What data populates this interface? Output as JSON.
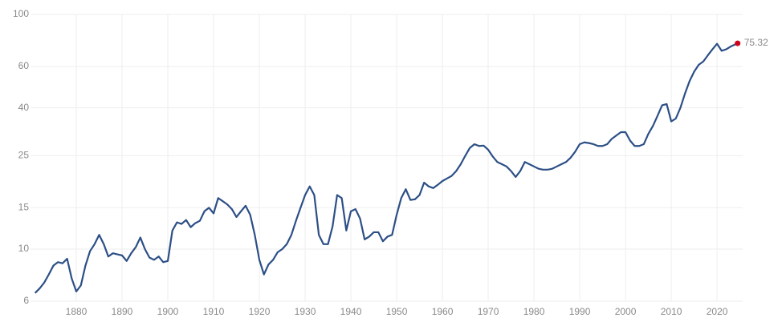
{
  "chart_data": {
    "type": "line",
    "log_y": true,
    "grid": true,
    "x": [
      1871,
      1872,
      1873,
      1874,
      1875,
      1876,
      1877,
      1878,
      1879,
      1880,
      1881,
      1882,
      1883,
      1884,
      1885,
      1886,
      1887,
      1888,
      1889,
      1890,
      1891,
      1892,
      1893,
      1894,
      1895,
      1896,
      1897,
      1898,
      1899,
      1900,
      1901,
      1902,
      1903,
      1904,
      1905,
      1906,
      1907,
      1908,
      1909,
      1910,
      1911,
      1912,
      1913,
      1914,
      1915,
      1916,
      1917,
      1918,
      1919,
      1920,
      1921,
      1922,
      1923,
      1924,
      1925,
      1926,
      1927,
      1928,
      1929,
      1930,
      1931,
      1932,
      1933,
      1934,
      1935,
      1936,
      1937,
      1938,
      1939,
      1940,
      1941,
      1942,
      1943,
      1944,
      1945,
      1946,
      1947,
      1948,
      1949,
      1950,
      1951,
      1952,
      1953,
      1954,
      1955,
      1956,
      1957,
      1958,
      1959,
      1960,
      1961,
      1962,
      1963,
      1964,
      1965,
      1966,
      1967,
      1968,
      1969,
      1970,
      1971,
      1972,
      1973,
      1974,
      1975,
      1976,
      1977,
      1978,
      1979,
      1980,
      1981,
      1982,
      1983,
      1984,
      1985,
      1986,
      1987,
      1988,
      1989,
      1990,
      1991,
      1992,
      1993,
      1994,
      1995,
      1996,
      1997,
      1998,
      1999,
      2000,
      2001,
      2002,
      2003,
      2004,
      2005,
      2006,
      2007,
      2008,
      2009,
      2010,
      2011,
      2012,
      2013,
      2014,
      2015,
      2016,
      2017,
      2018,
      2019,
      2020,
      2021,
      2022,
      2023,
      2024.5
    ],
    "series": [
      {
        "color": "#2c4f86",
        "end_marker_color": "#d0021b",
        "values": [
          6.5,
          6.8,
          7.2,
          7.8,
          8.5,
          8.8,
          8.7,
          9.1,
          7.5,
          6.6,
          7.0,
          8.5,
          9.8,
          10.5,
          11.5,
          10.5,
          9.3,
          9.6,
          9.5,
          9.4,
          8.9,
          9.6,
          10.2,
          11.2,
          10.0,
          9.2,
          9.0,
          9.3,
          8.8,
          8.9,
          12.0,
          13.0,
          12.8,
          13.3,
          12.4,
          12.9,
          13.2,
          14.5,
          15.0,
          14.2,
          16.5,
          16.0,
          15.5,
          14.8,
          13.7,
          14.5,
          15.3,
          14.0,
          11.5,
          9.0,
          7.8,
          8.6,
          9.0,
          9.7,
          10.0,
          10.5,
          11.5,
          13.2,
          15.0,
          17.0,
          18.5,
          17.0,
          11.5,
          10.5,
          10.5,
          12.5,
          17.0,
          16.5,
          12.0,
          14.5,
          14.8,
          13.5,
          11.0,
          11.3,
          11.8,
          11.8,
          10.8,
          11.3,
          11.5,
          14.0,
          16.5,
          18.0,
          16.2,
          16.3,
          17.0,
          19.2,
          18.5,
          18.2,
          18.8,
          19.5,
          20.0,
          20.5,
          21.5,
          23.0,
          25.0,
          27.0,
          28.0,
          27.5,
          27.6,
          26.5,
          24.8,
          23.5,
          23.0,
          22.5,
          21.5,
          20.3,
          21.5,
          23.5,
          23.0,
          22.5,
          22.0,
          21.8,
          21.8,
          22.0,
          22.5,
          23.0,
          23.5,
          24.5,
          26.0,
          28.0,
          28.5,
          28.3,
          28.0,
          27.5,
          27.5,
          28.0,
          29.5,
          30.5,
          31.5,
          31.5,
          29.0,
          27.5,
          27.5,
          28.0,
          31.0,
          33.5,
          37.0,
          41.0,
          41.5,
          35.0,
          36.0,
          40.0,
          46.0,
          52.0,
          57.0,
          61.0,
          63.0,
          67.0,
          71.0,
          75.0,
          70.0,
          71.0,
          73.0,
          75.32
        ]
      }
    ],
    "xlim": [
      1870,
      2025.6
    ],
    "xticks": [
      1880,
      1890,
      1900,
      1910,
      1920,
      1930,
      1940,
      1950,
      1960,
      1970,
      1980,
      1990,
      2000,
      2010,
      2020
    ],
    "ylim": [
      6,
      100
    ],
    "yticks": [
      6,
      10,
      15,
      25,
      40,
      60,
      100
    ]
  }
}
